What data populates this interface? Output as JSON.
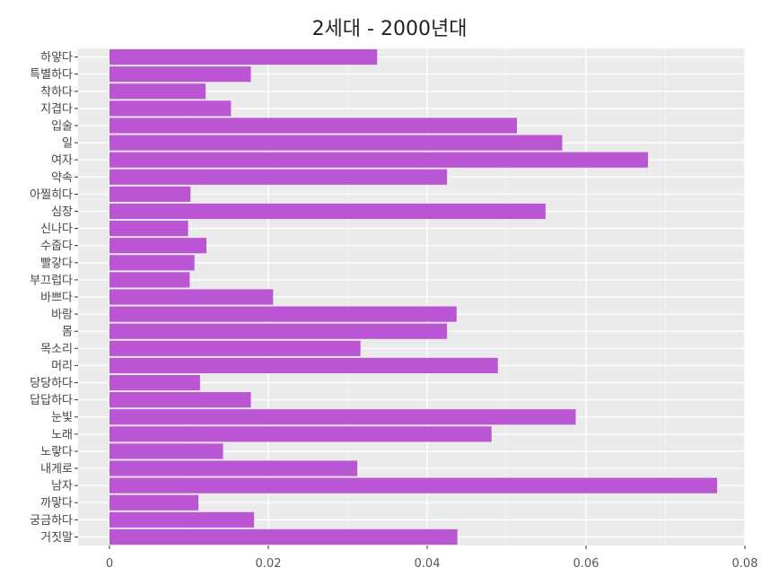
{
  "chart_data": {
    "type": "bar",
    "orientation": "horizontal",
    "title": "2세대 - 2000년대",
    "xlabel": "",
    "ylabel": "",
    "xlim": [
      0,
      0.08
    ],
    "x_ticks": [
      0,
      0.02,
      0.04,
      0.06,
      0.08
    ],
    "x_tick_labels": [
      "0",
      "0.02",
      "0.04",
      "0.06",
      "0.08"
    ],
    "grid": true,
    "bar_color": "#ba55d3",
    "panel_background": "#ebebeb",
    "categories": [
      "하얗다",
      "특별하다",
      "착하다",
      "지겹다",
      "입술",
      "일",
      "여자",
      "약속",
      "아찔히다",
      "심장",
      "신나다",
      "수줍다",
      "빨갛다",
      "부끄럽다",
      "바쁘다",
      "바람",
      "몸",
      "목소리",
      "머리",
      "당당하다",
      "답답하다",
      "눈빛",
      "노래",
      "노랗다",
      "내게로",
      "남자",
      "까맣다",
      "궁금하다",
      "거짓말"
    ],
    "values": [
      0.0337,
      0.0178,
      0.0121,
      0.0153,
      0.0513,
      0.057,
      0.0678,
      0.0425,
      0.0102,
      0.0549,
      0.0099,
      0.0122,
      0.0107,
      0.0101,
      0.0206,
      0.0437,
      0.0425,
      0.0316,
      0.0489,
      0.0114,
      0.0178,
      0.0587,
      0.0481,
      0.0143,
      0.0312,
      0.0765,
      0.0112,
      0.0182,
      0.0438
    ]
  }
}
